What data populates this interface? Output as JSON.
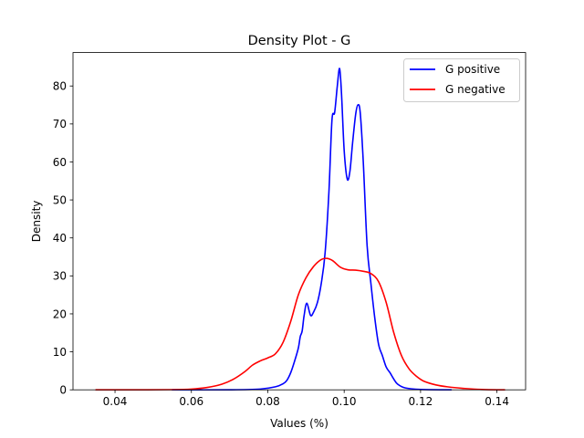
{
  "chart_data": {
    "type": "line",
    "title": "Density Plot - G",
    "xlabel": "Values (%)",
    "ylabel": "Density",
    "xlim": [
      0.029,
      0.1475
    ],
    "ylim": [
      0,
      88.8
    ],
    "xticks": [
      0.04,
      0.06,
      0.08,
      0.1,
      0.12,
      0.14
    ],
    "xtick_labels": [
      "0.04",
      "0.06",
      "0.08",
      "0.10",
      "0.12",
      "0.14"
    ],
    "yticks": [
      0,
      10,
      20,
      30,
      40,
      50,
      60,
      70,
      80
    ],
    "ytick_labels": [
      "0",
      "10",
      "20",
      "30",
      "40",
      "50",
      "60",
      "70",
      "80"
    ],
    "grid": false,
    "legend_position": "top-right",
    "series": [
      {
        "name": "G positive",
        "color": "#0000ff",
        "points": [
          [
            0.055,
            0.0
          ],
          [
            0.07,
            0.0
          ],
          [
            0.078,
            0.2
          ],
          [
            0.082,
            0.8
          ],
          [
            0.084,
            1.6
          ],
          [
            0.085,
            2.5
          ],
          [
            0.086,
            4.5
          ],
          [
            0.087,
            7.5
          ],
          [
            0.088,
            11.0
          ],
          [
            0.0885,
            14.0
          ],
          [
            0.089,
            15.5
          ],
          [
            0.0895,
            19.5
          ],
          [
            0.0902,
            22.8
          ],
          [
            0.0912,
            19.6
          ],
          [
            0.092,
            20.5
          ],
          [
            0.093,
            23.0
          ],
          [
            0.094,
            28.0
          ],
          [
            0.095,
            36.0
          ],
          [
            0.096,
            52.0
          ],
          [
            0.0968,
            71.0
          ],
          [
            0.0975,
            73.0
          ],
          [
            0.0982,
            80.0
          ],
          [
            0.0988,
            84.6
          ],
          [
            0.0993,
            78.0
          ],
          [
            0.1,
            63.0
          ],
          [
            0.1008,
            55.5
          ],
          [
            0.1015,
            57.5
          ],
          [
            0.1022,
            65.0
          ],
          [
            0.103,
            72.5
          ],
          [
            0.1036,
            75.0
          ],
          [
            0.1042,
            73.0
          ],
          [
            0.105,
            60.0
          ],
          [
            0.106,
            38.0
          ],
          [
            0.107,
            28.0
          ],
          [
            0.108,
            19.0
          ],
          [
            0.109,
            12.0
          ],
          [
            0.11,
            9.0
          ],
          [
            0.111,
            6.0
          ],
          [
            0.112,
            4.5
          ],
          [
            0.113,
            2.8
          ],
          [
            0.114,
            1.5
          ],
          [
            0.116,
            0.5
          ],
          [
            0.12,
            0.1
          ],
          [
            0.128,
            0.0
          ]
        ]
      },
      {
        "name": "G negative",
        "color": "#ff0000",
        "points": [
          [
            0.035,
            0.0
          ],
          [
            0.045,
            0.0
          ],
          [
            0.055,
            0.05
          ],
          [
            0.06,
            0.2
          ],
          [
            0.064,
            0.6
          ],
          [
            0.068,
            1.5
          ],
          [
            0.071,
            2.8
          ],
          [
            0.074,
            4.8
          ],
          [
            0.076,
            6.5
          ],
          [
            0.078,
            7.6
          ],
          [
            0.08,
            8.4
          ],
          [
            0.082,
            9.5
          ],
          [
            0.084,
            12.5
          ],
          [
            0.086,
            18.0
          ],
          [
            0.088,
            25.0
          ],
          [
            0.09,
            29.5
          ],
          [
            0.092,
            32.5
          ],
          [
            0.094,
            34.3
          ],
          [
            0.0955,
            34.6
          ],
          [
            0.097,
            34.0
          ],
          [
            0.099,
            32.3
          ],
          [
            0.101,
            31.6
          ],
          [
            0.103,
            31.5
          ],
          [
            0.105,
            31.2
          ],
          [
            0.107,
            30.6
          ],
          [
            0.109,
            28.5
          ],
          [
            0.111,
            23.0
          ],
          [
            0.113,
            15.0
          ],
          [
            0.115,
            9.0
          ],
          [
            0.117,
            5.5
          ],
          [
            0.119,
            3.5
          ],
          [
            0.121,
            2.2
          ],
          [
            0.124,
            1.3
          ],
          [
            0.127,
            0.8
          ],
          [
            0.131,
            0.4
          ],
          [
            0.136,
            0.1
          ],
          [
            0.142,
            0.0
          ]
        ]
      }
    ]
  }
}
